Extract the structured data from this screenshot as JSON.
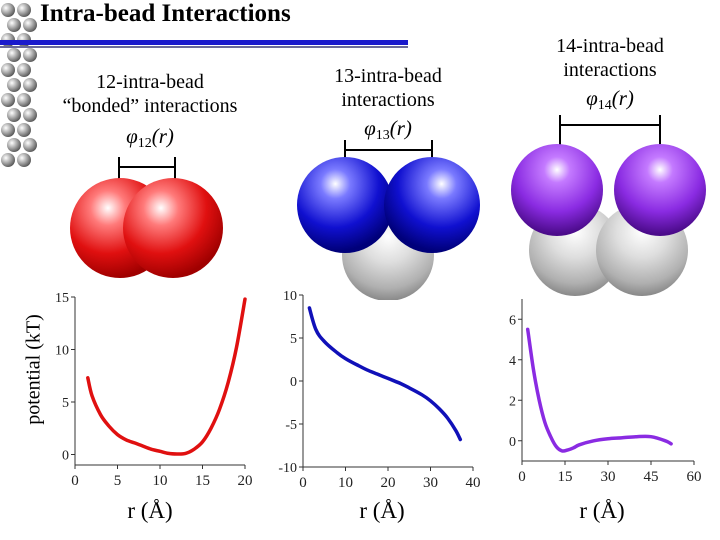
{
  "title": "Intra-bead Interactions",
  "panels": [
    {
      "heading_line1": "12-intra-bead",
      "heading_line2": "“bonded” interactions",
      "phi_symbol": "φ",
      "phi_sub": "12",
      "phi_arg": "(r)",
      "xlabel": "r (Å)"
    },
    {
      "heading_line1": "13-intra-bead",
      "heading_line2": "interactions",
      "phi_symbol": "φ",
      "phi_sub": "13",
      "phi_arg": "(r)",
      "xlabel": "r (Å)"
    },
    {
      "heading_line1": "14-intra-bead",
      "heading_line2": "interactions",
      "phi_symbol": "φ",
      "phi_sub": "14",
      "phi_arg": "(r)",
      "xlabel": "r (Å)"
    }
  ],
  "ylabel": "potential (kT)",
  "colors": {
    "red_bead": "#e01010",
    "blue_bead": "#1010d0",
    "purple_bead": "#8a2be2",
    "gray_bead": "#c8c8c8",
    "title_bar": "#1a1acc"
  },
  "chart_data": [
    {
      "type": "line",
      "title": "",
      "xlabel": "r (Å)",
      "ylabel": "potential (kT)",
      "xlim": [
        0,
        20
      ],
      "ylim": [
        -1,
        15
      ],
      "xticks": [
        0,
        5,
        10,
        15,
        20
      ],
      "yticks": [
        0,
        5,
        10,
        15
      ],
      "color": "#e01010",
      "x": [
        1.5,
        2,
        3,
        4,
        5,
        6,
        7,
        8,
        9,
        10,
        11,
        12,
        13,
        14,
        15,
        16,
        17,
        18,
        19,
        20
      ],
      "y": [
        7.3,
        5.6,
        3.8,
        2.7,
        1.9,
        1.4,
        1.1,
        0.8,
        0.5,
        0.3,
        0.1,
        0.05,
        0.1,
        0.5,
        1.2,
        2.5,
        4.3,
        6.8,
        10.2,
        14.8
      ]
    },
    {
      "type": "line",
      "title": "",
      "xlabel": "r (Å)",
      "ylabel": "",
      "xlim": [
        0,
        40
      ],
      "ylim": [
        -10,
        10
      ],
      "xticks": [
        0,
        10,
        20,
        30,
        40
      ],
      "yticks": [
        -10,
        -5,
        0,
        5,
        10
      ],
      "color": "#1010b8",
      "x": [
        1.5,
        3,
        5,
        8,
        10,
        13,
        15,
        18,
        20,
        23,
        25,
        28,
        30,
        32,
        34,
        36,
        37
      ],
      "y": [
        8.5,
        6.0,
        4.6,
        3.3,
        2.6,
        1.8,
        1.3,
        0.7,
        0.3,
        -0.3,
        -0.8,
        -1.6,
        -2.3,
        -3.2,
        -4.3,
        -5.8,
        -6.8
      ]
    },
    {
      "type": "line",
      "title": "",
      "xlabel": "r (Å)",
      "ylabel": "",
      "xlim": [
        0,
        60
      ],
      "ylim": [
        -1,
        7
      ],
      "xticks": [
        0,
        15,
        30,
        45,
        60
      ],
      "yticks": [
        0,
        2,
        4,
        6
      ],
      "color": "#8a2be2",
      "x": [
        2,
        4,
        6,
        8,
        10,
        12,
        14,
        16,
        18,
        20,
        25,
        30,
        35,
        40,
        45,
        50,
        52
      ],
      "y": [
        5.5,
        3.5,
        2.0,
        0.9,
        0.2,
        -0.3,
        -0.5,
        -0.45,
        -0.35,
        -0.2,
        0.0,
        0.1,
        0.15,
        0.2,
        0.2,
        0.0,
        -0.15
      ]
    }
  ]
}
